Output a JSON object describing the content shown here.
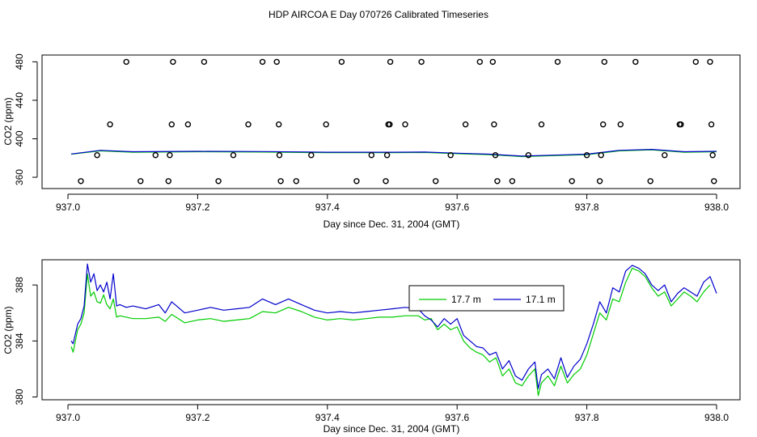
{
  "chart_data": [
    {
      "type": "scatter",
      "title": "HDP AIRCOA E  Day 070726  Calibrated Timeseries",
      "xlabel": "Day since Dec. 31, 2004 (GMT)",
      "ylabel": "CO2 (ppm)",
      "xlim": [
        937.0,
        938.0
      ],
      "ylim": [
        355,
        482
      ],
      "xticks": [
        937.0,
        937.2,
        937.4,
        937.6,
        937.8,
        938.0
      ],
      "xtick_labels": [
        "937.0",
        "937.2",
        "937.4",
        "937.6",
        "937.8",
        "938.0"
      ],
      "yticks": [
        360,
        400,
        440,
        480
      ],
      "ytick_labels": [
        "360",
        "400",
        "440",
        "480"
      ],
      "points": [
        [
          937.02,
          356
        ],
        [
          937.045,
          383
        ],
        [
          937.065,
          415
        ],
        [
          937.09,
          480
        ],
        [
          937.112,
          356
        ],
        [
          937.135,
          383
        ],
        [
          937.155,
          356
        ],
        [
          937.157,
          383
        ],
        [
          937.16,
          415
        ],
        [
          937.162,
          480
        ],
        [
          937.185,
          415
        ],
        [
          937.21,
          480
        ],
        [
          937.232,
          356
        ],
        [
          937.255,
          383
        ],
        [
          937.278,
          415
        ],
        [
          937.3,
          480
        ],
        [
          937.322,
          480
        ],
        [
          937.325,
          415
        ],
        [
          937.326,
          383
        ],
        [
          937.328,
          356
        ],
        [
          937.352,
          356
        ],
        [
          937.375,
          383
        ],
        [
          937.398,
          415
        ],
        [
          937.422,
          480
        ],
        [
          937.445,
          356
        ],
        [
          937.468,
          383
        ],
        [
          937.49,
          356
        ],
        [
          937.492,
          383
        ],
        [
          937.494,
          415
        ],
        [
          937.496,
          415
        ],
        [
          937.497,
          480
        ],
        [
          937.52,
          415
        ],
        [
          937.545,
          480
        ],
        [
          937.567,
          356
        ],
        [
          937.59,
          383
        ],
        [
          937.613,
          415
        ],
        [
          937.635,
          480
        ],
        [
          937.655,
          480
        ],
        [
          937.657,
          415
        ],
        [
          937.659,
          383
        ],
        [
          937.662,
          356
        ],
        [
          937.685,
          356
        ],
        [
          937.71,
          383
        ],
        [
          937.73,
          415
        ],
        [
          937.755,
          480
        ],
        [
          937.777,
          356
        ],
        [
          937.8,
          383
        ],
        [
          937.82,
          356
        ],
        [
          937.822,
          383
        ],
        [
          937.825,
          415
        ],
        [
          937.827,
          480
        ],
        [
          937.852,
          415
        ],
        [
          937.875,
          480
        ],
        [
          937.898,
          356
        ],
        [
          937.92,
          383
        ],
        [
          937.943,
          415
        ],
        [
          937.945,
          415
        ],
        [
          937.968,
          480
        ],
        [
          937.99,
          480
        ],
        [
          937.992,
          415
        ],
        [
          937.994,
          383
        ],
        [
          937.996,
          356
        ]
      ],
      "series": [
        {
          "name": "17.7 m",
          "color": "#00cc00",
          "x": [
            937.005,
            937.05,
            937.1,
            937.2,
            937.3,
            937.4,
            937.5,
            937.55,
            937.6,
            937.65,
            937.7,
            937.75,
            937.8,
            937.85,
            937.9,
            937.95,
            938.0
          ],
          "y": [
            384.0,
            387.5,
            386.0,
            386.5,
            386.2,
            385.5,
            385.5,
            385.8,
            384.5,
            383.5,
            381.5,
            382.5,
            383.5,
            387.5,
            388.5,
            386.0,
            386.5
          ]
        },
        {
          "name": "17.1 m",
          "color": "#0000cc",
          "x": [
            937.005,
            937.05,
            937.1,
            937.2,
            937.3,
            937.4,
            937.5,
            937.55,
            937.6,
            937.65,
            937.7,
            937.75,
            937.8,
            937.85,
            937.9,
            937.95,
            938.0
          ],
          "y": [
            384.2,
            388.0,
            386.5,
            387.0,
            386.7,
            386.0,
            386.0,
            386.2,
            385.0,
            384.0,
            382.0,
            383.0,
            384.0,
            388.0,
            389.0,
            386.5,
            387.0
          ]
        }
      ]
    },
    {
      "type": "line",
      "xlabel": "Day since Dec. 31, 2004 (GMT)",
      "ylabel": "CO2 (ppm)",
      "xlim": [
        937.0,
        938.0
      ],
      "ylim": [
        379.8,
        389.8
      ],
      "xticks": [
        937.0,
        937.2,
        937.4,
        937.6,
        937.8,
        938.0
      ],
      "xtick_labels": [
        "937.0",
        "937.2",
        "937.4",
        "937.6",
        "937.8",
        "938.0"
      ],
      "yticks": [
        380,
        384,
        388
      ],
      "ytick_labels": [
        "380",
        "384",
        "388"
      ],
      "legend_position": "top-right",
      "series": [
        {
          "name": "17.7 m",
          "color": "#00cc00",
          "x": [
            937.005,
            937.008,
            937.015,
            937.02,
            937.025,
            937.03,
            937.035,
            937.04,
            937.045,
            937.05,
            937.055,
            937.06,
            937.065,
            937.07,
            937.075,
            937.08,
            937.09,
            937.1,
            937.12,
            937.14,
            937.15,
            937.16,
            937.18,
            937.2,
            937.22,
            937.24,
            937.26,
            937.28,
            937.3,
            937.32,
            937.34,
            937.36,
            937.38,
            937.4,
            937.42,
            937.44,
            937.46,
            937.48,
            937.5,
            937.52,
            937.54,
            937.55,
            937.56,
            937.57,
            937.58,
            937.59,
            937.6,
            937.61,
            937.62,
            937.63,
            937.64,
            937.65,
            937.66,
            937.67,
            937.68,
            937.69,
            937.7,
            937.71,
            937.72,
            937.725,
            937.73,
            937.74,
            937.75,
            937.76,
            937.77,
            937.78,
            937.79,
            937.8,
            937.81,
            937.82,
            937.83,
            937.84,
            937.85,
            937.86,
            937.87,
            937.88,
            937.89,
            937.9,
            937.91,
            937.92,
            937.93,
            937.94,
            937.95,
            937.96,
            937.97,
            937.98,
            937.99
          ],
          "y": [
            383.6,
            383.2,
            384.8,
            385.2,
            386.0,
            388.8,
            387.2,
            387.5,
            386.8,
            386.7,
            387.3,
            386.6,
            386.3,
            387.0,
            385.7,
            385.8,
            385.7,
            385.6,
            385.6,
            385.7,
            385.4,
            385.9,
            385.3,
            385.5,
            385.6,
            385.4,
            385.5,
            385.6,
            386.1,
            386.0,
            386.4,
            386.1,
            385.7,
            385.5,
            385.6,
            385.5,
            385.6,
            385.7,
            385.7,
            385.8,
            385.8,
            385.5,
            385.6,
            384.8,
            385.2,
            384.8,
            385.0,
            384.0,
            383.5,
            383.2,
            383.0,
            382.5,
            382.8,
            381.5,
            382.0,
            381.0,
            380.8,
            381.5,
            382.0,
            380.1,
            381.0,
            381.5,
            380.8,
            382.2,
            381.0,
            381.6,
            382.0,
            383.0,
            384.5,
            386.0,
            385.5,
            387.0,
            386.8,
            388.2,
            389.2,
            389.0,
            388.6,
            387.8,
            387.2,
            387.5,
            386.5,
            387.0,
            387.5,
            387.2,
            386.8,
            387.5,
            388.0
          ]
        },
        {
          "name": "17.1 m",
          "color": "#0000cc",
          "x": [
            937.005,
            937.008,
            937.015,
            937.02,
            937.025,
            937.03,
            937.035,
            937.04,
            937.045,
            937.05,
            937.055,
            937.06,
            937.065,
            937.07,
            937.075,
            937.08,
            937.09,
            937.1,
            937.12,
            937.14,
            937.15,
            937.16,
            937.18,
            937.2,
            937.22,
            937.24,
            937.26,
            937.28,
            937.3,
            937.32,
            937.34,
            937.36,
            937.38,
            937.4,
            937.42,
            937.44,
            937.46,
            937.48,
            937.5,
            937.52,
            937.54,
            937.55,
            937.56,
            937.57,
            937.58,
            937.59,
            937.6,
            937.61,
            937.62,
            937.63,
            937.64,
            937.65,
            937.66,
            937.67,
            937.68,
            937.69,
            937.7,
            937.71,
            937.72,
            937.725,
            937.73,
            937.74,
            937.75,
            937.76,
            937.77,
            937.78,
            937.79,
            937.8,
            937.81,
            937.82,
            937.83,
            937.84,
            937.85,
            937.86,
            937.87,
            937.88,
            937.89,
            937.9,
            937.91,
            937.92,
            937.93,
            937.94,
            937.95,
            937.96,
            937.97,
            937.98,
            937.99,
            938.0
          ],
          "y": [
            384.0,
            383.8,
            385.2,
            385.6,
            386.5,
            389.5,
            388.2,
            388.8,
            387.6,
            388.0,
            387.5,
            388.2,
            387.0,
            388.8,
            386.5,
            386.6,
            386.4,
            386.5,
            386.3,
            386.6,
            386.0,
            386.8,
            386.0,
            386.2,
            386.4,
            386.2,
            386.3,
            386.4,
            387.0,
            386.6,
            387.0,
            386.6,
            386.2,
            386.0,
            386.1,
            386.0,
            386.1,
            386.2,
            386.3,
            386.4,
            386.3,
            385.8,
            385.5,
            385.0,
            385.6,
            385.2,
            385.6,
            384.4,
            384.0,
            383.6,
            383.5,
            383.0,
            383.2,
            382.0,
            382.6,
            381.5,
            381.2,
            382.0,
            382.5,
            380.6,
            381.6,
            382.0,
            381.3,
            382.8,
            381.4,
            382.2,
            382.7,
            383.8,
            385.2,
            386.8,
            386.0,
            387.8,
            387.5,
            389.0,
            389.4,
            389.2,
            388.8,
            388.0,
            387.6,
            388.0,
            386.8,
            387.4,
            387.8,
            387.5,
            387.2,
            388.2,
            388.6,
            387.4
          ]
        }
      ]
    }
  ]
}
